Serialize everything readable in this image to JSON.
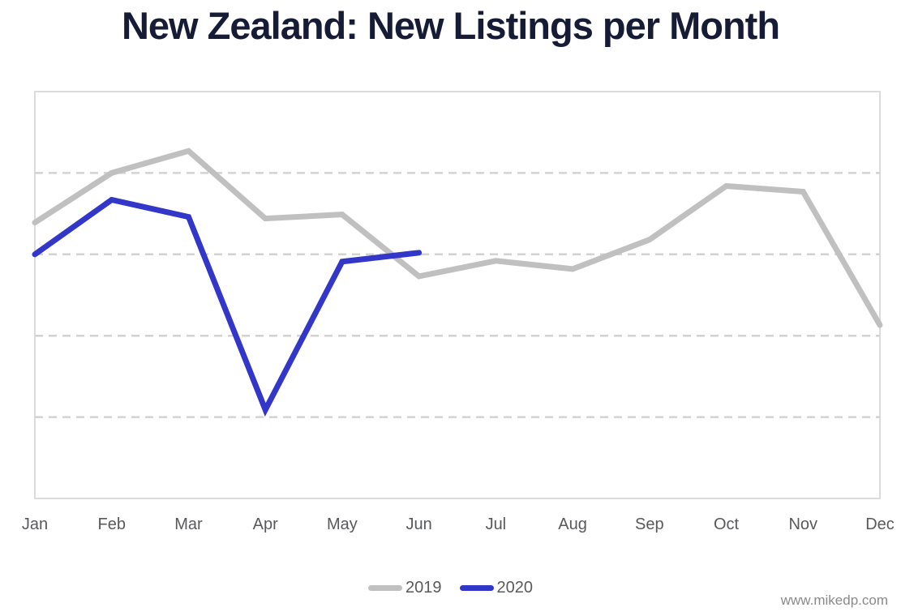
{
  "chart_data": {
    "type": "line",
    "title": "New Zealand: New Listings per Month",
    "title_color": "#171c36",
    "categories": [
      "Jan",
      "Feb",
      "Mar",
      "Apr",
      "May",
      "Jun",
      "Jul",
      "Aug",
      "Sep",
      "Oct",
      "Nov",
      "Dec"
    ],
    "series": [
      {
        "name": "2019",
        "color": "#c0c0c0",
        "values": [
          3.39,
          4.0,
          4.27,
          3.44,
          3.49,
          2.73,
          2.92,
          2.82,
          3.18,
          3.84,
          3.77,
          2.13
        ]
      },
      {
        "name": "2020",
        "color": "#3236c9",
        "values": [
          3.0,
          3.67,
          3.46,
          1.09,
          2.91,
          3.02
        ]
      }
    ],
    "xlabel": "",
    "ylabel": "",
    "ylim": [
      0,
      5
    ],
    "y_tick_labels_visible": false,
    "gridlines": {
      "y_values": [
        1,
        2,
        3,
        4
      ],
      "style": "dashed",
      "color": "#d2d2d2"
    },
    "plot_border_color": "#dcdcdc",
    "axis_label_color": "#58595b",
    "legend_position": "bottom"
  },
  "footer": {
    "watermark": "www.mikedp.com"
  }
}
